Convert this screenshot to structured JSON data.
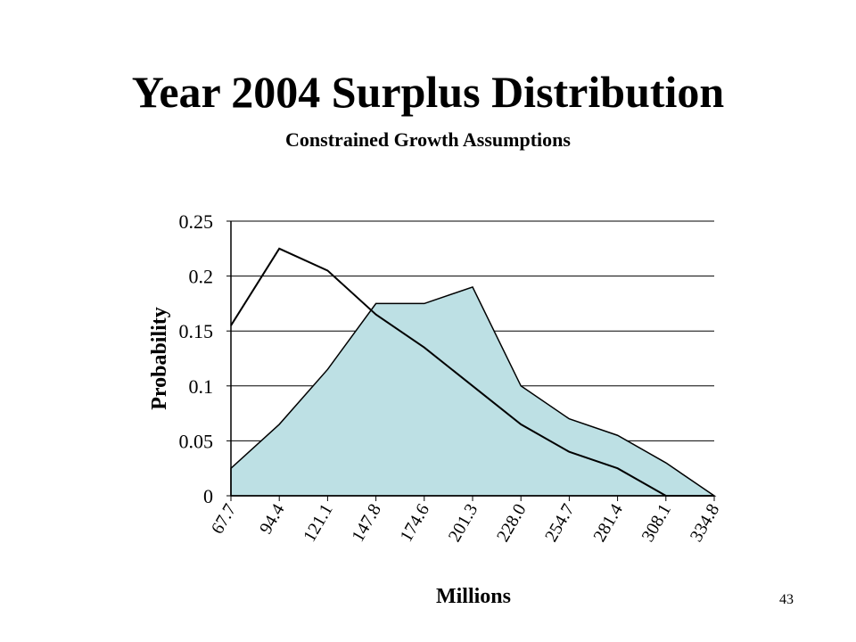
{
  "slide": {
    "title": "Year 2004 Surplus Distribution",
    "subtitle": "Constrained Growth Assumptions",
    "page_number": "43"
  },
  "chart_data": {
    "type": "area",
    "title": "",
    "xlabel": "Millions",
    "ylabel": "Probability",
    "categories": [
      "67.7",
      "94.4",
      "121.1",
      "147.8",
      "174.6",
      "201.3",
      "228.0",
      "254.7",
      "281.4",
      "308.1",
      "334.8"
    ],
    "ylim": [
      0,
      0.25
    ],
    "yticks": [
      "0",
      "0.05",
      "0.1",
      "0.15",
      "0.2",
      "0.25"
    ],
    "grid": true,
    "legend": "none",
    "series": [
      {
        "style": "filled-area",
        "color": "#bde0e4",
        "values": [
          0.025,
          0.065,
          0.115,
          0.175,
          0.175,
          0.19,
          0.1,
          0.07,
          0.055,
          0.03,
          0.0
        ]
      },
      {
        "style": "line",
        "color": "#000000",
        "values": [
          0.155,
          0.225,
          0.205,
          0.165,
          0.135,
          0.1,
          0.065,
          0.04,
          0.025,
          0.0,
          0.0
        ]
      }
    ]
  }
}
